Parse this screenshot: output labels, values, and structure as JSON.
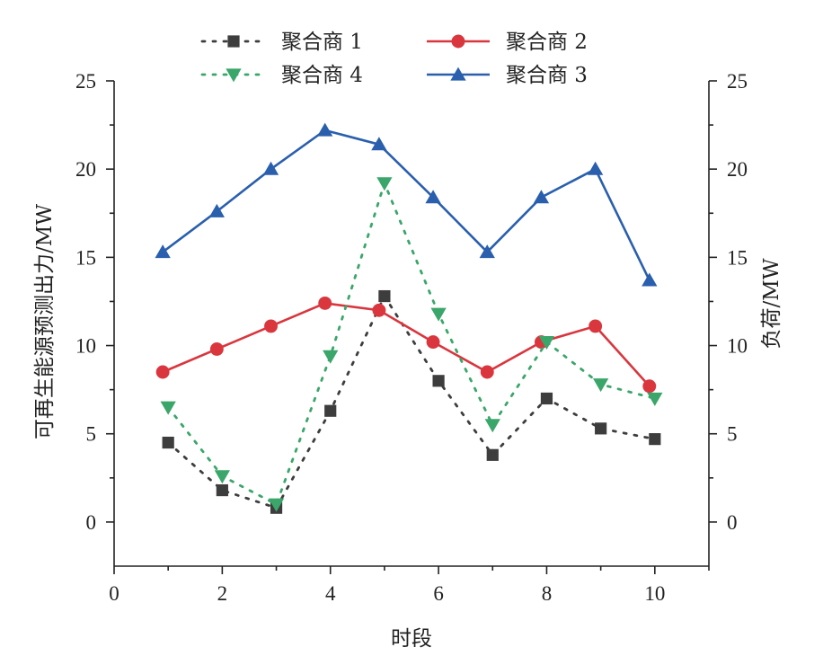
{
  "chart_data": {
    "type": "line",
    "xlabel": "时段",
    "ylabel_left": "可再生能源预测出力/MW",
    "ylabel_right": "负荷/MW",
    "xlim": [
      0,
      11
    ],
    "ylim": [
      -2.5,
      25
    ],
    "x_ticks": [
      0,
      2,
      4,
      6,
      8,
      10
    ],
    "y_ticks": [
      0,
      5,
      10,
      15,
      20,
      25
    ],
    "grid": false,
    "legend_position": "top",
    "series": [
      {
        "name": "聚合商 1",
        "axis": "left",
        "color": "#3d3d3d",
        "marker": "square",
        "style": "dotted",
        "x": [
          1,
          2,
          3,
          4,
          5,
          6,
          7,
          8,
          9,
          10
        ],
        "y": [
          4.5,
          1.8,
          0.8,
          6.3,
          12.8,
          8.0,
          3.8,
          7.0,
          5.3,
          4.7
        ]
      },
      {
        "name": "聚合商 2",
        "axis": "right",
        "color": "#d9363e",
        "marker": "circle",
        "style": "solid",
        "x": [
          0.9,
          1.9,
          2.9,
          3.9,
          4.9,
          5.9,
          6.9,
          7.9,
          8.9,
          9.9
        ],
        "y": [
          8.5,
          9.8,
          11.1,
          12.4,
          12.0,
          10.2,
          8.5,
          10.2,
          11.1,
          7.7
        ]
      },
      {
        "name": "聚合商 4",
        "axis": "left",
        "color": "#3aa66a",
        "marker": "triangle-down",
        "style": "dotted",
        "x": [
          1,
          2,
          3,
          4,
          5,
          6,
          7,
          8,
          9,
          10
        ],
        "y": [
          6.5,
          2.6,
          1.0,
          9.4,
          19.2,
          11.8,
          5.5,
          10.2,
          7.8,
          7.0
        ]
      },
      {
        "name": "聚合商 3",
        "axis": "right",
        "color": "#2a5fad",
        "marker": "triangle-up",
        "style": "solid",
        "x": [
          0.9,
          1.9,
          2.9,
          3.9,
          4.9,
          5.9,
          6.9,
          7.9,
          8.9,
          9.9
        ],
        "y": [
          15.3,
          17.6,
          20.0,
          22.2,
          21.4,
          18.4,
          15.3,
          18.4,
          20.0,
          13.7
        ]
      }
    ]
  }
}
